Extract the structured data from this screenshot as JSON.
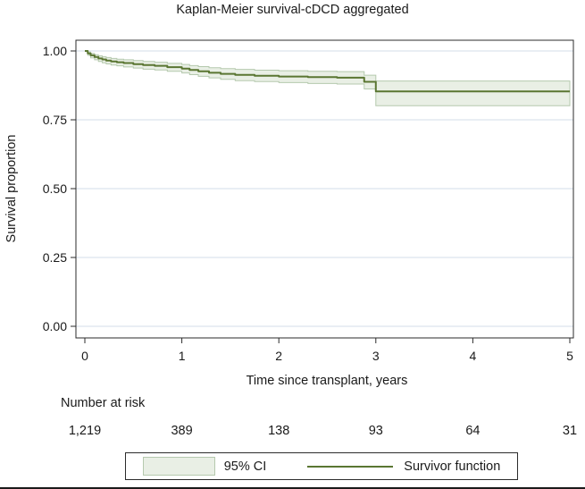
{
  "chart_data": {
    "type": "line",
    "subtype": "kaplan-meier-step",
    "title": "Kaplan-Meier survival-cDCD aggregated",
    "xlabel": "Time since transplant, years",
    "ylabel": "Survival proportion",
    "xlim": [
      0,
      5
    ],
    "ylim": [
      0,
      1
    ],
    "xticks": [
      0,
      1,
      2,
      3,
      4,
      5
    ],
    "xtick_labels": [
      "0",
      "1",
      "2",
      "3",
      "4",
      "5"
    ],
    "yticks": [
      0,
      0.25,
      0.5,
      0.75,
      1
    ],
    "ytick_labels": [
      "0.00",
      "0.25",
      "0.50",
      "0.75",
      "1.00"
    ],
    "grid": "horizontal",
    "legend_position": "bottom-center",
    "colors": {
      "line": "#5a7632",
      "ci_fill": "#e9efe5",
      "ci_edge": "#b5c9ae",
      "grid": "#d3dee9",
      "axis": "#2b2b2b",
      "text": "#1a1a1a",
      "background": "#ffffff"
    },
    "series": [
      {
        "name": "Survivor function",
        "color": "#5a7632",
        "x": [
          0,
          0.03,
          0.06,
          0.1,
          0.14,
          0.18,
          0.22,
          0.27,
          0.33,
          0.4,
          0.5,
          0.6,
          0.72,
          0.85,
          1.0,
          1.08,
          1.17,
          1.28,
          1.4,
          1.55,
          1.75,
          2.0,
          2.3,
          2.6,
          2.88,
          3.0,
          5.0
        ],
        "y": [
          1.0,
          0.991,
          0.984,
          0.978,
          0.973,
          0.969,
          0.965,
          0.962,
          0.959,
          0.956,
          0.952,
          0.949,
          0.946,
          0.941,
          0.936,
          0.931,
          0.926,
          0.921,
          0.917,
          0.913,
          0.91,
          0.907,
          0.905,
          0.903,
          0.888,
          0.853,
          0.853
        ]
      }
    ],
    "ci": {
      "name": "95% CI",
      "x": [
        0,
        0.03,
        0.06,
        0.1,
        0.14,
        0.18,
        0.22,
        0.27,
        0.33,
        0.4,
        0.5,
        0.6,
        0.72,
        0.85,
        1.0,
        1.08,
        1.17,
        1.28,
        1.4,
        1.55,
        1.75,
        2.0,
        2.3,
        2.6,
        2.88,
        3.0,
        5.0
      ],
      "upper": [
        1.0,
        0.996,
        0.991,
        0.986,
        0.982,
        0.979,
        0.976,
        0.973,
        0.97,
        0.968,
        0.965,
        0.962,
        0.959,
        0.955,
        0.951,
        0.947,
        0.943,
        0.939,
        0.936,
        0.933,
        0.93,
        0.928,
        0.926,
        0.925,
        0.912,
        0.891,
        0.891
      ],
      "lower": [
        1.0,
        0.984,
        0.975,
        0.968,
        0.962,
        0.957,
        0.953,
        0.949,
        0.946,
        0.942,
        0.938,
        0.934,
        0.931,
        0.926,
        0.92,
        0.914,
        0.908,
        0.902,
        0.897,
        0.892,
        0.889,
        0.885,
        0.882,
        0.88,
        0.862,
        0.801,
        0.801
      ]
    },
    "at_risk": {
      "label": "Number at risk",
      "times": [
        0,
        1,
        2,
        3,
        4,
        5
      ],
      "counts": [
        "1,219",
        "389",
        "138",
        "93",
        "64",
        "31"
      ]
    }
  }
}
